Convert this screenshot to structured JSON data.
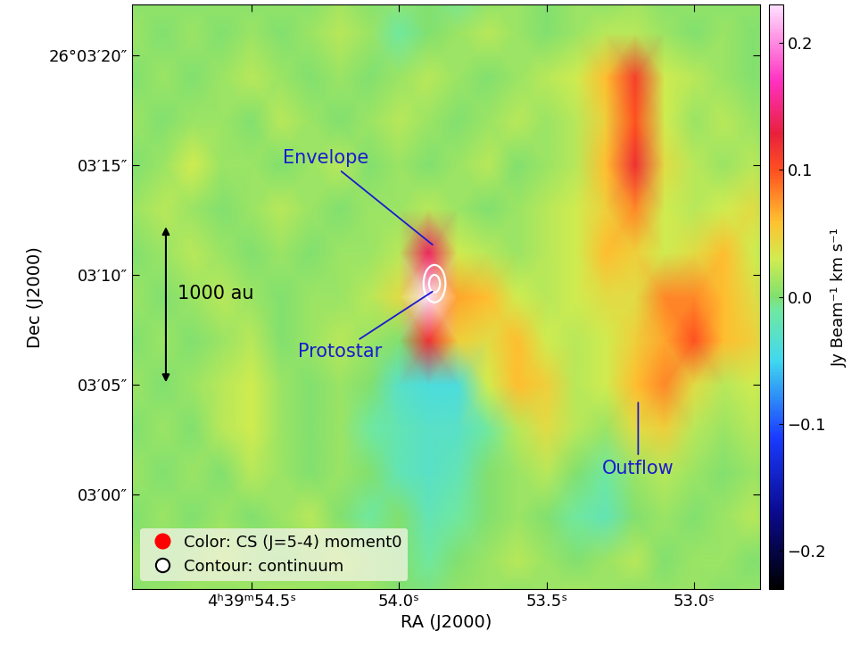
{
  "chart_data": {
    "type": "heatmap",
    "xlabel": "RA (J2000)",
    "ylabel": "Dec (J2000)",
    "xlim": [
      54.905,
      52.776
    ],
    "ylim": [
      -4.3,
      22.3
    ],
    "xticks": [
      {
        "value": 54.5,
        "label": "4ʰ39ᵐ54.5ˢ"
      },
      {
        "value": 54.0,
        "label": "54.0ˢ"
      },
      {
        "value": 53.5,
        "label": "53.5ˢ"
      },
      {
        "value": 53.0,
        "label": "53.0ˢ"
      }
    ],
    "yticks": [
      {
        "value": 20,
        "label": "26°03′20″"
      },
      {
        "value": 15,
        "label": "03′15″"
      },
      {
        "value": 10,
        "label": "03′10″"
      },
      {
        "value": 5,
        "label": "03′05″"
      },
      {
        "value": 0,
        "label": "03′00″"
      }
    ],
    "ra": [
      54.9,
      54.8,
      54.7,
      54.6,
      54.5,
      54.4,
      54.3,
      54.2,
      54.1,
      54.0,
      53.9,
      53.8,
      53.7,
      53.6,
      53.5,
      53.4,
      53.3,
      53.2,
      53.1,
      53.0,
      52.9,
      52.8,
      52.7
    ],
    "dec": [
      -5,
      -3,
      -1,
      1,
      3,
      5,
      7,
      9,
      11,
      13,
      15,
      17,
      19,
      21,
      23
    ],
    "cells": [
      [
        0.0,
        0.01,
        0.01,
        0.0,
        0.01,
        0.02,
        0.01,
        0.0,
        0.01,
        0.0,
        0.0,
        0.01,
        0.01,
        0.0,
        0.01,
        0.02,
        0.01,
        0.0,
        0.01,
        0.01,
        0.0,
        0.01,
        0.0
      ],
      [
        0.01,
        0.0,
        0.01,
        0.02,
        0.01,
        0.0,
        0.01,
        0.02,
        0.01,
        0.0,
        -0.01,
        0.0,
        0.01,
        0.02,
        0.01,
        0.0,
        0.01,
        0.02,
        0.0,
        0.01,
        0.01,
        0.0,
        0.01
      ],
      [
        0.0,
        0.01,
        0.0,
        0.01,
        0.0,
        0.01,
        0.02,
        0.0,
        -0.01,
        0.0,
        -0.02,
        -0.01,
        0.0,
        0.01,
        0.0,
        -0.01,
        -0.02,
        0.0,
        0.01,
        0.0,
        0.01,
        0.02,
        0.0
      ],
      [
        0.01,
        0.0,
        0.01,
        0.0,
        0.02,
        0.01,
        0.0,
        0.01,
        0.0,
        -0.02,
        -0.03,
        -0.02,
        0.0,
        0.01,
        0.02,
        0.0,
        -0.01,
        0.01,
        0.02,
        0.01,
        0.0,
        0.01,
        0.0
      ],
      [
        0.0,
        0.01,
        0.0,
        0.02,
        0.03,
        0.01,
        0.0,
        0.01,
        -0.01,
        -0.02,
        -0.03,
        -0.03,
        -0.01,
        0.02,
        0.04,
        0.02,
        0.01,
        0.04,
        0.05,
        0.02,
        0.01,
        0.02,
        0.01
      ],
      [
        0.01,
        0.0,
        0.01,
        0.02,
        0.03,
        0.01,
        0.0,
        0.01,
        0.0,
        -0.03,
        -0.04,
        -0.04,
        0.03,
        0.06,
        0.05,
        0.02,
        0.03,
        0.06,
        0.08,
        0.04,
        0.02,
        0.03,
        0.01
      ],
      [
        0.0,
        0.01,
        0.0,
        0.01,
        0.02,
        0.0,
        0.01,
        0.02,
        0.01,
        0.0,
        0.12,
        0.05,
        0.04,
        0.06,
        0.03,
        0.02,
        0.03,
        0.05,
        0.07,
        0.1,
        0.06,
        0.05,
        0.02
      ],
      [
        0.01,
        0.0,
        0.01,
        0.02,
        0.01,
        0.0,
        0.01,
        0.01,
        0.02,
        0.04,
        0.23,
        0.07,
        0.06,
        0.03,
        0.02,
        0.03,
        0.04,
        0.04,
        0.08,
        0.08,
        0.06,
        0.04,
        0.01
      ],
      [
        0.0,
        0.01,
        0.02,
        0.01,
        0.0,
        0.01,
        0.0,
        0.01,
        0.01,
        0.02,
        0.14,
        0.03,
        0.02,
        0.01,
        0.02,
        0.03,
        0.06,
        0.05,
        0.03,
        0.04,
        0.06,
        0.03,
        0.01
      ],
      [
        0.01,
        0.02,
        0.01,
        0.0,
        0.01,
        0.02,
        0.01,
        0.0,
        0.01,
        0.01,
        0.02,
        0.01,
        0.0,
        0.01,
        0.02,
        0.03,
        0.05,
        0.08,
        0.03,
        0.02,
        0.03,
        0.04,
        0.01
      ],
      [
        0.0,
        0.01,
        0.03,
        0.01,
        0.01,
        0.0,
        0.01,
        0.02,
        0.0,
        0.01,
        0.0,
        0.01,
        0.02,
        0.0,
        0.01,
        0.02,
        0.06,
        0.12,
        0.04,
        0.02,
        0.01,
        0.02,
        0.0
      ],
      [
        0.01,
        0.0,
        0.01,
        0.01,
        0.0,
        0.02,
        0.01,
        0.0,
        0.01,
        0.02,
        0.01,
        0.0,
        0.01,
        0.02,
        0.01,
        0.02,
        0.05,
        0.1,
        0.03,
        0.01,
        0.02,
        0.01,
        0.0
      ],
      [
        0.0,
        0.01,
        0.0,
        0.01,
        0.02,
        0.01,
        0.0,
        0.01,
        0.0,
        0.01,
        0.02,
        0.01,
        0.0,
        0.01,
        0.02,
        0.03,
        0.06,
        0.11,
        0.03,
        0.02,
        0.01,
        0.0,
        0.01
      ],
      [
        0.01,
        0.0,
        0.01,
        0.0,
        0.01,
        0.0,
        0.01,
        0.02,
        0.01,
        -0.01,
        0.0,
        0.01,
        0.02,
        0.01,
        0.0,
        0.01,
        0.02,
        0.02,
        0.01,
        0.0,
        0.01,
        0.0,
        0.01
      ],
      [
        0.0,
        0.01,
        0.0,
        0.01,
        0.0,
        0.01,
        0.0,
        0.01,
        0.0,
        0.01,
        0.0,
        -0.01,
        0.0,
        0.01,
        0.0,
        0.01,
        0.0,
        0.01,
        0.0,
        0.01,
        0.0,
        0.01,
        0.0
      ]
    ],
    "colorbar": {
      "label": "Jy Beam⁻¹ km s⁻¹",
      "range": [
        -0.23,
        0.23
      ],
      "ticks": [
        {
          "value": -0.2,
          "label": "−0.2"
        },
        {
          "value": -0.1,
          "label": "−0.1"
        },
        0.0,
        0.1,
        0.2
      ]
    },
    "legend": "lower left",
    "series": [
      {
        "name": "Color: CS (J=5-4) moment0",
        "color": "#ff0000",
        "marker": "circle"
      },
      {
        "name": "Contour: continuum",
        "color": "#ffffff",
        "marker": "ellipse"
      }
    ],
    "continuum": {
      "ra": 53.88,
      "dec": 9.6,
      "color": "#ffffff",
      "contours": [
        {
          "major_arcsec": 1.7,
          "minor_arcsec": 1.0
        },
        {
          "major_arcsec": 0.8,
          "minor_arcsec": 0.5
        }
      ]
    },
    "annotations": [
      {
        "text": "Envelope",
        "color": "#1a1ad0"
      },
      {
        "text": "Protostar",
        "color": "#1a1ad0"
      },
      {
        "text": "Outflow",
        "color": "#1a1ad0"
      }
    ],
    "scale_bar": {
      "label": "1000 au",
      "length_arcsec": 7.3
    }
  }
}
